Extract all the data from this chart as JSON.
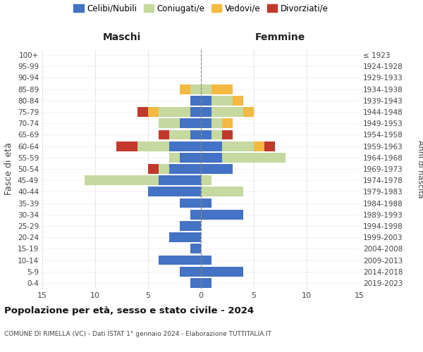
{
  "age_groups": [
    "0-4",
    "5-9",
    "10-14",
    "15-19",
    "20-24",
    "25-29",
    "30-34",
    "35-39",
    "40-44",
    "45-49",
    "50-54",
    "55-59",
    "60-64",
    "65-69",
    "70-74",
    "75-79",
    "80-84",
    "85-89",
    "90-94",
    "95-99",
    "100+"
  ],
  "birth_years": [
    "2019-2023",
    "2014-2018",
    "2009-2013",
    "2004-2008",
    "1999-2003",
    "1994-1998",
    "1989-1993",
    "1984-1988",
    "1979-1983",
    "1974-1978",
    "1969-1973",
    "1964-1968",
    "1959-1963",
    "1954-1958",
    "1949-1953",
    "1944-1948",
    "1939-1943",
    "1934-1938",
    "1929-1933",
    "1924-1928",
    "≤ 1923"
  ],
  "colors": {
    "celibi": "#4472c4",
    "coniugati": "#c5d9a0",
    "vedovi": "#f4b942",
    "divorziati": "#c0392b"
  },
  "maschi": {
    "celibi": [
      1,
      2,
      4,
      1,
      3,
      2,
      1,
      2,
      5,
      4,
      3,
      2,
      3,
      1,
      2,
      1,
      1,
      0,
      0,
      0,
      0
    ],
    "coniugati": [
      0,
      0,
      0,
      0,
      0,
      0,
      0,
      0,
      0,
      7,
      1,
      1,
      3,
      2,
      2,
      3,
      0,
      1,
      0,
      0,
      0
    ],
    "vedovi": [
      0,
      0,
      0,
      0,
      0,
      0,
      0,
      0,
      0,
      0,
      0,
      0,
      0,
      0,
      0,
      1,
      0,
      1,
      0,
      0,
      0
    ],
    "divorziati": [
      0,
      0,
      0,
      0,
      0,
      0,
      0,
      0,
      0,
      0,
      1,
      0,
      2,
      1,
      0,
      1,
      0,
      0,
      0,
      0,
      0
    ]
  },
  "femmine": {
    "celibi": [
      1,
      4,
      1,
      0,
      0,
      0,
      4,
      1,
      0,
      0,
      3,
      2,
      2,
      1,
      1,
      1,
      1,
      0,
      0,
      0,
      0
    ],
    "coniugati": [
      0,
      0,
      0,
      0,
      0,
      0,
      0,
      0,
      4,
      1,
      0,
      6,
      3,
      1,
      1,
      3,
      2,
      1,
      0,
      0,
      0
    ],
    "vedovi": [
      0,
      0,
      0,
      0,
      0,
      0,
      0,
      0,
      0,
      0,
      0,
      0,
      1,
      0,
      1,
      1,
      1,
      2,
      0,
      0,
      0
    ],
    "divorziati": [
      0,
      0,
      0,
      0,
      0,
      0,
      0,
      0,
      0,
      0,
      0,
      0,
      1,
      1,
      0,
      0,
      0,
      0,
      0,
      0,
      0
    ]
  },
  "title": "Popolazione per età, sesso e stato civile - 2024",
  "subtitle": "COMUNE DI RIMELLA (VC) - Dati ISTAT 1° gennaio 2024 - Elaborazione TUTTITALIA.IT",
  "xlabel_left": "Maschi",
  "xlabel_right": "Femmine",
  "ylabel_left": "Fasce di età",
  "ylabel_right": "Anni di nascita",
  "xlim": 15,
  "legend_labels": [
    "Celibi/Nubili",
    "Coniugati/e",
    "Vedovi/e",
    "Divorziati/e"
  ]
}
